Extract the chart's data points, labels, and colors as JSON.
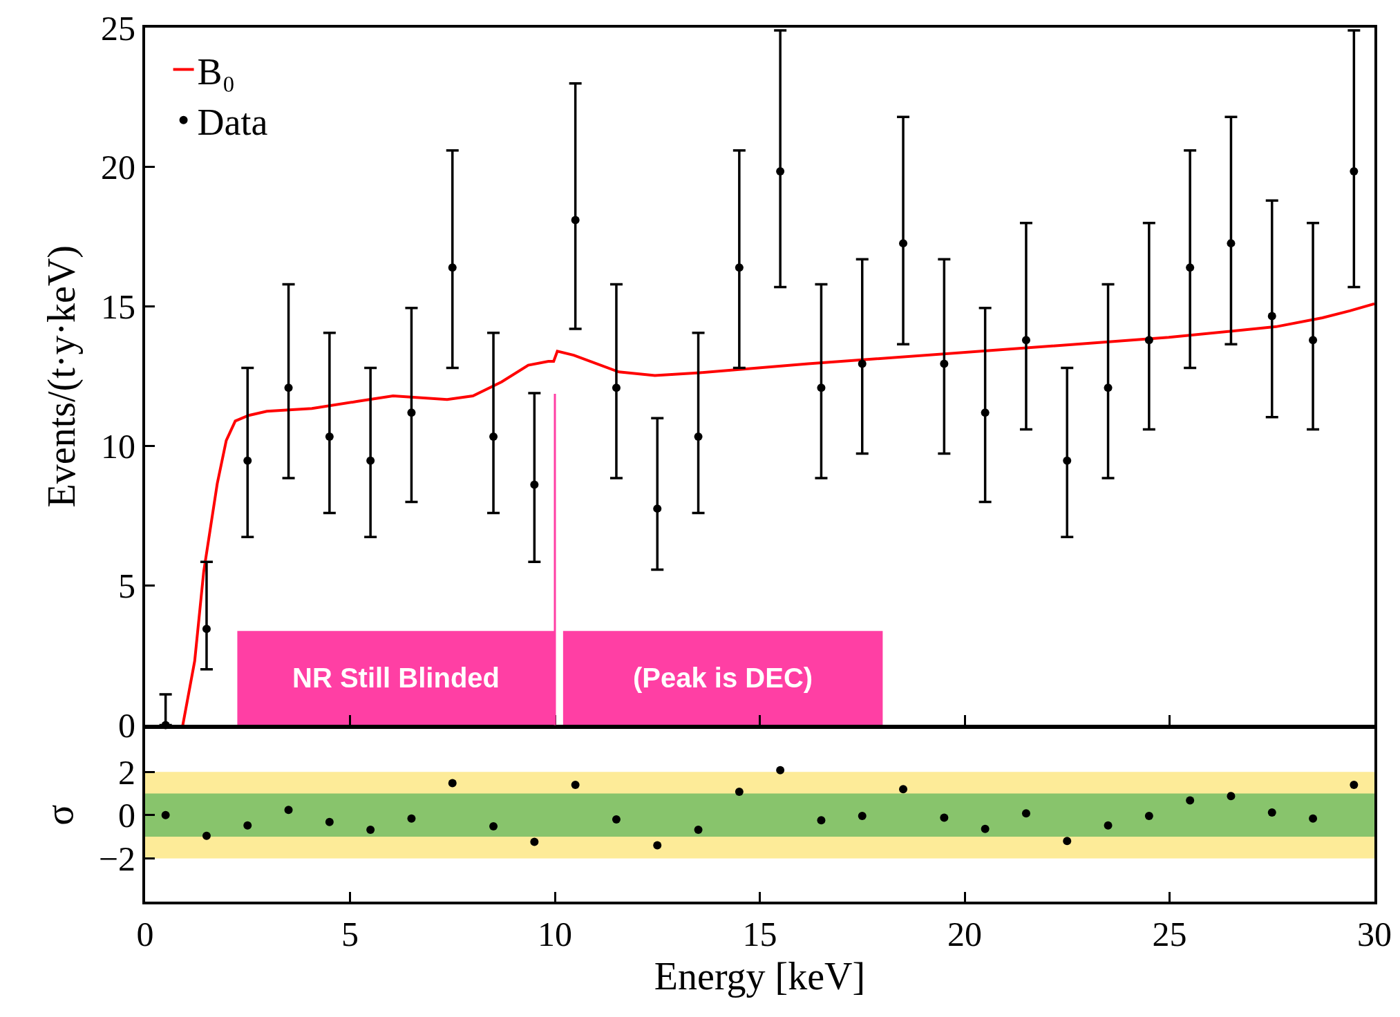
{
  "chart_data": [
    {
      "type": "scatter",
      "ylabel": "Events/(t·y·keV)",
      "xlim": [
        0,
        30
      ],
      "xticks": [
        0,
        5,
        10,
        15,
        20,
        25,
        30
      ],
      "ylim": [
        0,
        25
      ],
      "yticks": [
        0,
        5,
        10,
        15,
        20,
        25
      ],
      "tick_labels": "y",
      "legend": "top left",
      "series": [
        {
          "type": "line",
          "name": "B₀",
          "color": "#ff0000",
          "x": [
            0.92,
            1.21,
            1.43,
            1.76,
            1.98,
            2.2,
            2.53,
            2.97,
            4.07,
            5.17,
            6.05,
            7.37,
            8.0,
            8.7,
            9.35,
            9.84,
            9.97,
            10.06,
            10.46,
            11.56,
            12.44,
            13.54,
            16.18,
            20.58,
            24.98,
            27.6,
            28.73,
            29.4,
            30
          ],
          "values": [
            0,
            2.3,
            5.5,
            8.65,
            10.2,
            10.9,
            11.1,
            11.25,
            11.35,
            11.6,
            11.8,
            11.67,
            11.8,
            12.3,
            12.9,
            13.04,
            13.04,
            13.4,
            13.26,
            12.66,
            12.53,
            12.63,
            12.95,
            13.42,
            13.9,
            14.28,
            14.6,
            14.85,
            15.1
          ]
        },
        {
          "type": "scatter",
          "name": "Data",
          "color": "#000000",
          "marker": "circle",
          "x": [
            0.5,
            1.5,
            2.5,
            3.5,
            4.5,
            5.5,
            6.5,
            7.5,
            8.5,
            9.5,
            10.5,
            11.5,
            12.5,
            13.5,
            14.5,
            15.5,
            16.5,
            17.5,
            18.5,
            19.5,
            20.5,
            21.5,
            22.5,
            23.5,
            24.5,
            25.5,
            26.5,
            27.5,
            28.5,
            29.5
          ],
          "values": [
            0,
            3.45,
            9.48,
            12.09,
            10.34,
            9.48,
            11.2,
            16.4,
            10.34,
            8.62,
            18.1,
            12.09,
            7.76,
            10.34,
            16.4,
            19.85,
            12.09,
            12.95,
            17.27,
            12.95,
            11.2,
            13.8,
            9.48,
            12.09,
            13.8,
            16.4,
            17.27,
            14.66,
            13.8,
            19.85
          ],
          "errors": [
            [
              0,
              1.1
            ],
            [
              2.0,
              5.85
            ],
            [
              6.74,
              12.8
            ],
            [
              8.85,
              15.8
            ],
            [
              7.6,
              14.06
            ],
            [
              6.74,
              12.8
            ],
            [
              8.0,
              14.95
            ],
            [
              12.8,
              20.6
            ],
            [
              7.6,
              14.06
            ],
            [
              5.85,
              11.9
            ],
            [
              14.2,
              23.0
            ],
            [
              8.85,
              15.8
            ],
            [
              5.57,
              11.0
            ],
            [
              7.6,
              14.06
            ],
            [
              12.8,
              20.6
            ],
            [
              15.7,
              24.9
            ],
            [
              8.85,
              15.8
            ],
            [
              9.73,
              16.7
            ],
            [
              13.65,
              21.8
            ],
            [
              9.73,
              16.7
            ],
            [
              8.0,
              14.95
            ],
            [
              10.6,
              18.0
            ],
            [
              6.74,
              12.8
            ],
            [
              8.85,
              15.8
            ],
            [
              10.6,
              18.0
            ],
            [
              12.8,
              20.6
            ],
            [
              13.65,
              21.8
            ],
            [
              11.04,
              18.8
            ],
            [
              10.6,
              18.0
            ],
            [
              15.7,
              24.9
            ]
          ]
        }
      ],
      "ref_lines": [
        {
          "axis": "x",
          "value": 10,
          "color": "#ff3fa4"
        }
      ],
      "bands": [
        {
          "axis": "x",
          "from": 2.25,
          "to": 10.0,
          "label": "NR Still Blinded",
          "color": "#ff3fa4"
        },
        {
          "axis": "x",
          "from": 10.2,
          "to": 18.0,
          "label": "(Peak is DEC)",
          "color": "#ff3fa4"
        }
      ]
    },
    {
      "type": "scatter",
      "xlabel": "Energy [keV]",
      "ylabel": "σ",
      "xlim": [
        0,
        30
      ],
      "xticks": [
        0,
        5,
        10,
        15,
        20,
        25,
        30
      ],
      "ylim": [
        -4,
        4
      ],
      "yticks": [
        {
          "value": -2,
          "label": "−2"
        },
        0,
        2
      ],
      "marker": "circle",
      "series": [
        {
          "color": "#000000",
          "x": [
            0.5,
            1.5,
            2.5,
            3.5,
            4.5,
            5.5,
            6.5,
            7.5,
            8.5,
            9.5,
            10.5,
            11.5,
            12.5,
            13.5,
            14.5,
            15.5,
            16.5,
            17.5,
            18.5,
            19.5,
            20.5,
            21.5,
            22.5,
            23.5,
            24.5,
            25.5,
            26.5,
            27.5,
            28.5,
            29.5
          ],
          "values": [
            0,
            -0.96,
            -0.48,
            0.24,
            -0.32,
            -0.68,
            -0.16,
            1.48,
            -0.52,
            -1.24,
            1.4,
            -0.2,
            -1.4,
            -0.68,
            1.08,
            2.08,
            -0.24,
            -0.04,
            1.2,
            -0.12,
            -0.64,
            0.08,
            -1.2,
            -0.48,
            -0.04,
            0.68,
            0.88,
            0.12,
            -0.16,
            1.4
          ]
        }
      ],
      "bands": [
        {
          "axis": "y",
          "from": -2,
          "to": 2,
          "color": "#fdeb98"
        },
        {
          "axis": "y",
          "from": -1,
          "to": 1,
          "color": "#88c46c"
        }
      ]
    }
  ]
}
